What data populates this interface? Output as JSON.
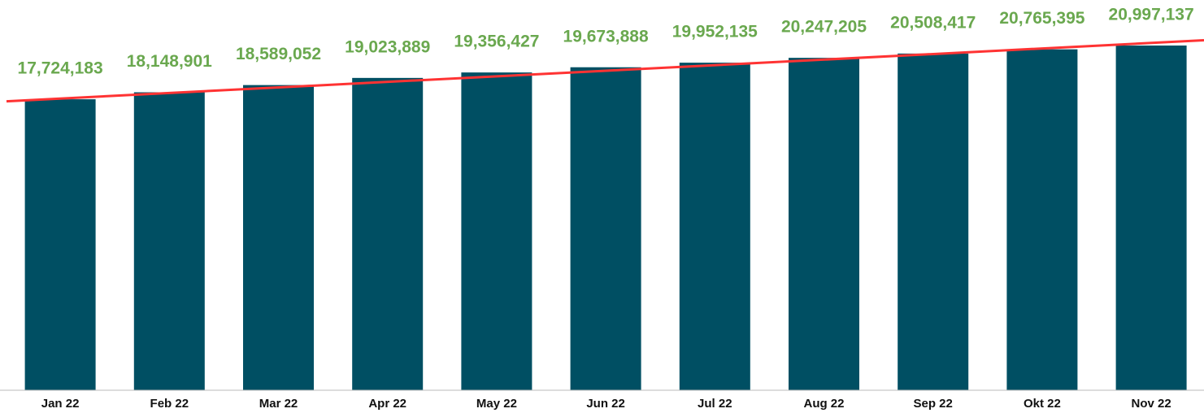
{
  "chart_data": {
    "type": "bar",
    "categories": [
      "Jan 22",
      "Feb 22",
      "Mar 22",
      "Apr 22",
      "May 22",
      "Jun 22",
      "Jul 22",
      "Aug 22",
      "Sep 22",
      "Okt 22",
      "Nov 22"
    ],
    "values": [
      17724183,
      18148901,
      18589052,
      19023889,
      19356427,
      19673888,
      19952135,
      20247205,
      20508417,
      20765395,
      20997137
    ],
    "value_labels": [
      "17,724,183",
      "18,148,901",
      "18,589,052",
      "19,023,889",
      "19,356,427",
      "19,673,888",
      "19,952,135",
      "20,247,205",
      "20,508,417",
      "20,765,395",
      "20,997,137"
    ],
    "color": "#004f63",
    "label_color": "#6aa84f",
    "trendline_color": "#ff3333",
    "trendline": true
  }
}
